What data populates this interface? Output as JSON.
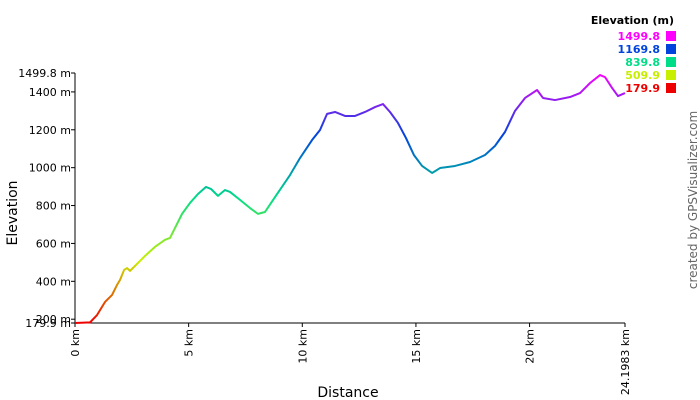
{
  "chart_data": {
    "type": "line",
    "x_label": "Distance",
    "y_label": "Elevation",
    "credit": "created by GPSVisualizer.com",
    "legend_title": "Elevation (m)",
    "color_scale": [
      {
        "value": 1499.8,
        "color": "#ff00ff"
      },
      {
        "value": 1169.8,
        "color": "#0044dd"
      },
      {
        "value": 839.8,
        "color": "#00dd88"
      },
      {
        "value": 509.9,
        "color": "#c8ee00"
      },
      {
        "value": 179.9,
        "color": "#ee0000"
      }
    ],
    "x": [
      0,
      0.66,
      0.97,
      1.32,
      1.63,
      1.85,
      1.98,
      2.16,
      2.29,
      2.42,
      2.64,
      3.08,
      3.52,
      3.96,
      4.18,
      4.4,
      4.71,
      5.06,
      5.41,
      5.76,
      5.98,
      6.29,
      6.6,
      6.82,
      7.26,
      7.7,
      8.05,
      8.36,
      8.8,
      9.46,
      9.9,
      10.43,
      10.78,
      11.09,
      11.44,
      11.88,
      12.32,
      12.76,
      13.2,
      13.55,
      13.86,
      14.21,
      14.56,
      14.91,
      15.27,
      15.71,
      16.06,
      16.72,
      17.38,
      18.04,
      18.48,
      18.92,
      19.36,
      19.8,
      20.33,
      20.59,
      21.12,
      21.78,
      22.22,
      22.66,
      23.1,
      23.32,
      23.63,
      23.89,
      24.1983
    ],
    "series": [
      {
        "name": "Elevation",
        "values": [
          180,
          183,
          222,
          291,
          328,
          381,
          407,
          460,
          470,
          455,
          481,
          534,
          582,
          619,
          629,
          682,
          756,
          814,
          861,
          898,
          888,
          851,
          882,
          872,
          830,
          787,
          756,
          766,
          845,
          961,
          1051,
          1146,
          1199,
          1284,
          1294,
          1273,
          1273,
          1294,
          1320,
          1336,
          1294,
          1236,
          1157,
          1067,
          1009,
          972,
          998,
          1009,
          1030,
          1067,
          1115,
          1189,
          1300,
          1368,
          1410,
          1368,
          1357,
          1373,
          1394,
          1447,
          1489,
          1478,
          1421,
          1378,
          1394
        ]
      }
    ],
    "xlim": [
      0,
      24.1983
    ],
    "ylim": [
      179.9,
      1499.8
    ],
    "xticks": [
      {
        "value": 0,
        "label": "0 km"
      },
      {
        "value": 5,
        "label": "5 km"
      },
      {
        "value": 10,
        "label": "10 km"
      },
      {
        "value": 15,
        "label": "15 km"
      },
      {
        "value": 20,
        "label": "20 km"
      },
      {
        "value": 24.1983,
        "label": "24.1983 km"
      }
    ],
    "yticks": [
      {
        "value": 179.9,
        "label": "179.9 m"
      },
      {
        "value": 200,
        "label": "200 m"
      },
      {
        "value": 400,
        "label": "400 m"
      },
      {
        "value": 600,
        "label": "600 m"
      },
      {
        "value": 800,
        "label": "800 m"
      },
      {
        "value": 1000,
        "label": "1000 m"
      },
      {
        "value": 1200,
        "label": "1200 m"
      },
      {
        "value": 1400,
        "label": "1400 m"
      },
      {
        "value": 1499.8,
        "label": "1499.8 m"
      }
    ]
  }
}
